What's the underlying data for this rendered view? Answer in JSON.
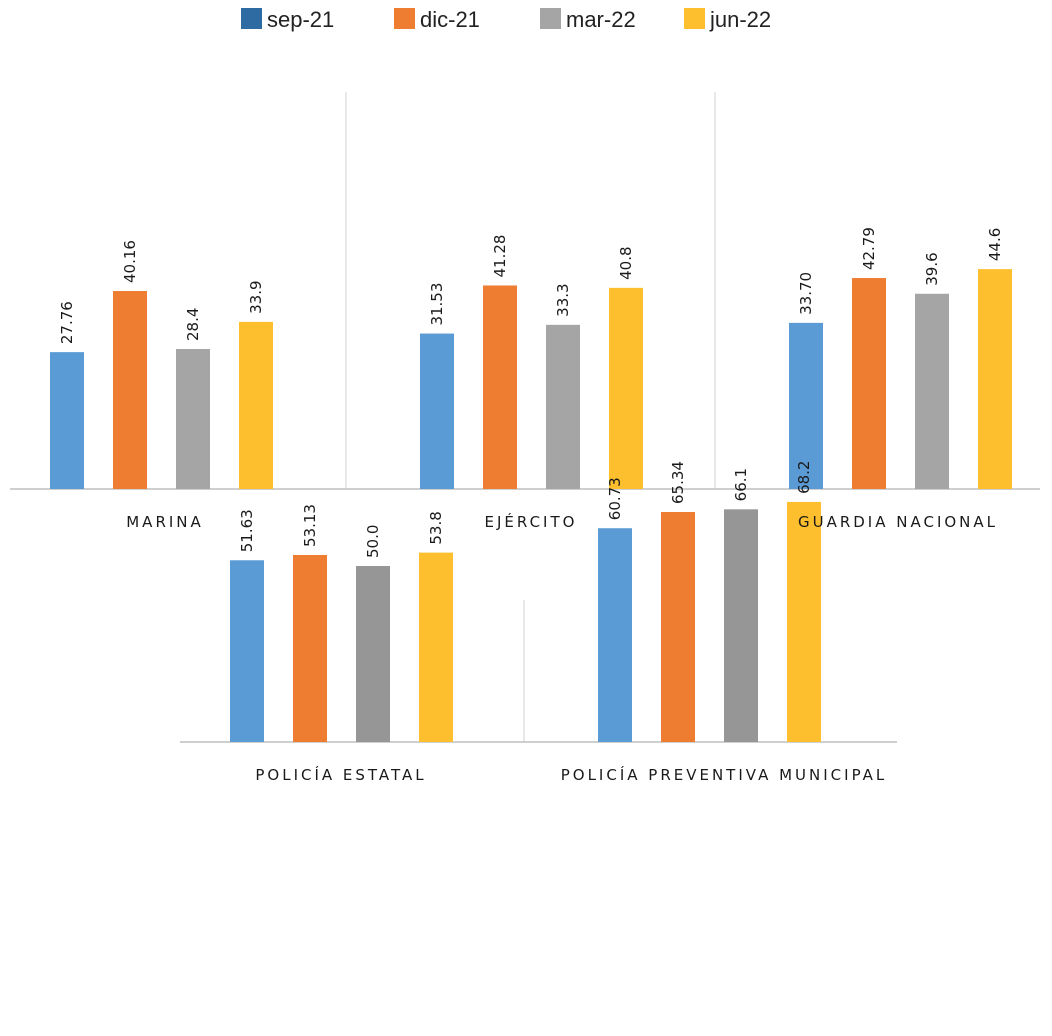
{
  "chart_data": {
    "type": "bar",
    "legend": {
      "placement": "top-center",
      "entries": [
        {
          "name": "sep-21",
          "color": "#2f6ba3"
        },
        {
          "name": "dic-21",
          "color": "#ee7d31"
        },
        {
          "name": "mar-22",
          "color": "#a5a5a5"
        },
        {
          "name": "jun-22",
          "color": "#fdbf2d"
        }
      ]
    },
    "series_names": [
      "sep-21",
      "dic-21",
      "mar-22",
      "jun-22"
    ],
    "bar_colors": [
      "#5b9bd5",
      "#ee7d31",
      "#a5a5a5",
      "#fdbf2d"
    ],
    "panels": [
      {
        "category": "MARINA",
        "values": [
          27.76,
          40.16,
          28.4,
          33.9
        ],
        "labels": [
          "27.76",
          "40.16",
          "28.4",
          "33.9"
        ],
        "bar_colors": [
          "#5b9bd5",
          "#ee7d31",
          "#a5a5a5",
          "#fdbf2d"
        ]
      },
      {
        "category": "EJÉRCITO",
        "values": [
          31.53,
          41.28,
          33.3,
          40.8
        ],
        "labels": [
          "31.53",
          "41.28",
          "33.3",
          "40.8"
        ],
        "bar_colors": [
          "#5b9bd5",
          "#ee7d31",
          "#a5a5a5",
          "#fdbf2d"
        ]
      },
      {
        "category": "GUARDIA NACIONAL",
        "values": [
          33.7,
          42.79,
          39.6,
          44.6
        ],
        "labels": [
          "33.70",
          "42.79",
          "39.6",
          "44.6"
        ],
        "bar_colors": [
          "#5b9bd5",
          "#ee7d31",
          "#a5a5a5",
          "#fdbf2d"
        ]
      },
      {
        "category": "POLICÍA ESTATAL",
        "values": [
          51.63,
          53.13,
          50.0,
          53.8
        ],
        "labels": [
          "51.63",
          "53.13",
          "50.0",
          "53.8"
        ],
        "bar_colors": [
          "#5b9bd5",
          "#ee7d31",
          "#969696",
          "#fdbf2d"
        ]
      },
      {
        "category": "POLICÍA PREVENTIVA MUNICIPAL",
        "values": [
          60.73,
          65.34,
          66.1,
          68.2
        ],
        "labels": [
          "60.73",
          "65.34",
          "66.1",
          "68.2"
        ],
        "bar_colors": [
          "#5b9bd5",
          "#ee7d31",
          "#969696",
          "#fdbf2d"
        ]
      }
    ],
    "ylim": [
      0,
      100
    ],
    "grid": false
  }
}
